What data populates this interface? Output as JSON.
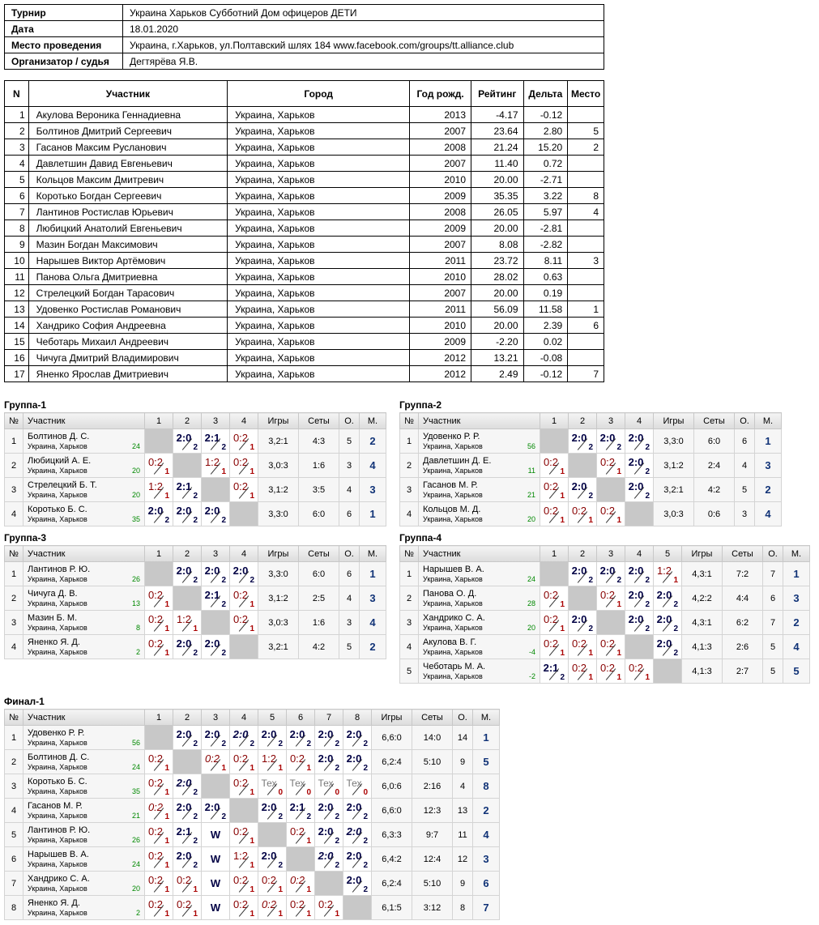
{
  "info": [
    {
      "k": "Турнир",
      "v": "Украина Харьков Субботний Дом офицеров ДЕТИ"
    },
    {
      "k": "Дата",
      "v": "18.01.2020"
    },
    {
      "k": "Место проведения",
      "v": "Украина, г.Харьков, ул.Полтавский шлях 184 www.facebook.com/groups/tt.alliance.club"
    },
    {
      "k": "Организатор / судья",
      "v": "Дегтярёва Я.В."
    }
  ],
  "parts_headers": [
    "N",
    "Участник",
    "Город",
    "Год рожд.",
    "Рейтинг",
    "Дельта",
    "Место"
  ],
  "parts": [
    [
      "1",
      "Акулова Вероника Геннадиевна",
      "Украина, Харьков",
      "2013",
      "-4.17",
      "-0.12",
      ""
    ],
    [
      "2",
      "Болтинов Дмитрий Сергеевич",
      "Украина, Харьков",
      "2007",
      "23.64",
      "2.80",
      "5"
    ],
    [
      "3",
      "Гасанов Максим Русланович",
      "Украина, Харьков",
      "2008",
      "21.24",
      "15.20",
      "2"
    ],
    [
      "4",
      "Давлетшин Давид Евгеньевич",
      "Украина, Харьков",
      "2007",
      "11.40",
      "0.72",
      ""
    ],
    [
      "5",
      "Кольцов Максим Дмитревич",
      "Украина, Харьков",
      "2010",
      "20.00",
      "-2.71",
      ""
    ],
    [
      "6",
      "Коротько Богдан Сергеевич",
      "Украина, Харьков",
      "2009",
      "35.35",
      "3.22",
      "8"
    ],
    [
      "7",
      "Лантинов Ростислав Юрьевич",
      "Украина, Харьков",
      "2008",
      "26.05",
      "5.97",
      "4"
    ],
    [
      "8",
      "Любицкий Анатолий Евгеньевич",
      "Украина, Харьков",
      "2009",
      "20.00",
      "-2.81",
      ""
    ],
    [
      "9",
      "Мазин Богдан Максимович",
      "Украина, Харьков",
      "2007",
      "8.08",
      "-2.82",
      ""
    ],
    [
      "10",
      "Нарышев Виктор Артёмович",
      "Украина, Харьков",
      "2011",
      "23.72",
      "8.11",
      "3"
    ],
    [
      "11",
      "Панова Ольга Дмитриевна",
      "Украина, Харьков",
      "2010",
      "28.02",
      "0.63",
      ""
    ],
    [
      "12",
      "Стрелецкий Богдан Тарасович",
      "Украина, Харьков",
      "2007",
      "20.00",
      "0.19",
      ""
    ],
    [
      "13",
      "Удовенко Ростислав Романович",
      "Украина, Харьков",
      "2011",
      "56.09",
      "11.58",
      "1"
    ],
    [
      "14",
      "Хандрико София Андреевна",
      "Украина, Харьков",
      "2010",
      "20.00",
      "2.39",
      "6"
    ],
    [
      "15",
      "Чеботарь Михаил Андреевич",
      "Украина, Харьков",
      "2009",
      "-2.20",
      "0.02",
      ""
    ],
    [
      "16",
      "Чичуга Дмитрий Владимирович",
      "Украина, Харьков",
      "2012",
      "13.21",
      "-0.08",
      ""
    ],
    [
      "17",
      "Яненко Ярослав Дмитриевич",
      "Украина, Харьков",
      "2012",
      "2.49",
      "-0.12",
      "7"
    ]
  ],
  "group_cols": {
    "num": "№",
    "player": "Участник",
    "games": "Игры",
    "sets": "Сеты",
    "points": "О.",
    "place": "М."
  },
  "groups": [
    {
      "title": "Группа-1",
      "rows": [
        {
          "n": "1",
          "name": "Болтинов Д. С.",
          "city": "Украина, Харьков",
          "rt": "24",
          "cells": [
            null,
            "w:2:0:2",
            "w:2:1:2",
            "l:0:2:1"
          ],
          "games": "3,2:1",
          "sets": "4:3",
          "pts": "5",
          "place": "2"
        },
        {
          "n": "2",
          "name": "Любицкий А. Е.",
          "city": "Украина, Харьков",
          "rt": "20",
          "cells": [
            "l:0:2:1",
            null,
            "l:1:2:1",
            "l:0:2:1"
          ],
          "games": "3,0:3",
          "sets": "1:6",
          "pts": "3",
          "place": "4"
        },
        {
          "n": "3",
          "name": "Стрелецкий Б. Т.",
          "city": "Украина, Харьков",
          "rt": "20",
          "cells": [
            "l:1:2:1",
            "w:2:1:2",
            null,
            "l:0:2:1"
          ],
          "games": "3,1:2",
          "sets": "3:5",
          "pts": "4",
          "place": "3"
        },
        {
          "n": "4",
          "name": "Коротько Б. С.",
          "city": "Украина, Харьков",
          "rt": "35",
          "cells": [
            "w:2:0:2",
            "w:2:0:2",
            "w:2:0:2",
            null
          ],
          "games": "3,3:0",
          "sets": "6:0",
          "pts": "6",
          "place": "1"
        }
      ]
    },
    {
      "title": "Группа-2",
      "rows": [
        {
          "n": "1",
          "name": "Удовенко Р. Р.",
          "city": "Украина, Харьков",
          "rt": "56",
          "cells": [
            null,
            "w:2:0:2",
            "w:2:0:2",
            "w:2:0:2"
          ],
          "games": "3,3:0",
          "sets": "6:0",
          "pts": "6",
          "place": "1"
        },
        {
          "n": "2",
          "name": "Давлетшин Д. Е.",
          "city": "Украина, Харьков",
          "rt": "11",
          "cells": [
            "l:0:2:1",
            null,
            "l:0:2:1",
            "w:2:0:2"
          ],
          "games": "3,1:2",
          "sets": "2:4",
          "pts": "4",
          "place": "3"
        },
        {
          "n": "3",
          "name": "Гасанов М. Р.",
          "city": "Украина, Харьков",
          "rt": "21",
          "cells": [
            "l:0:2:1",
            "w:2:0:2",
            null,
            "w:2:0:2"
          ],
          "games": "3,2:1",
          "sets": "4:2",
          "pts": "5",
          "place": "2"
        },
        {
          "n": "4",
          "name": "Кольцов М. Д.",
          "city": "Украина, Харьков",
          "rt": "20",
          "cells": [
            "l:0:2:1",
            "l:0:2:1",
            "l:0:2:1",
            null
          ],
          "games": "3,0:3",
          "sets": "0:6",
          "pts": "3",
          "place": "4"
        }
      ]
    },
    {
      "title": "Группа-3",
      "rows": [
        {
          "n": "1",
          "name": "Лантинов Р. Ю.",
          "city": "Украина, Харьков",
          "rt": "26",
          "cells": [
            null,
            "w:2:0:2",
            "w:2:0:2",
            "w:2:0:2"
          ],
          "games": "3,3:0",
          "sets": "6:0",
          "pts": "6",
          "place": "1"
        },
        {
          "n": "2",
          "name": "Чичуга Д. В.",
          "city": "Украина, Харьков",
          "rt": "13",
          "cells": [
            "l:0:2:1",
            null,
            "w:2:1:2",
            "l:0:2:1"
          ],
          "games": "3,1:2",
          "sets": "2:5",
          "pts": "4",
          "place": "3"
        },
        {
          "n": "3",
          "name": "Мазин Б. М.",
          "city": "Украина, Харьков",
          "rt": "8",
          "cells": [
            "l:0:2:1",
            "l:1:2:1",
            null,
            "l:0:2:1"
          ],
          "games": "3,0:3",
          "sets": "1:6",
          "pts": "3",
          "place": "4"
        },
        {
          "n": "4",
          "name": "Яненко Я. Д.",
          "city": "Украина, Харьков",
          "rt": "2",
          "cells": [
            "l:0:2:1",
            "w:2:0:2",
            "w:2:0:2",
            null
          ],
          "games": "3,2:1",
          "sets": "4:2",
          "pts": "5",
          "place": "2"
        }
      ]
    },
    {
      "title": "Группа-4",
      "rows": [
        {
          "n": "1",
          "name": "Нарышев В. А.",
          "city": "Украина, Харьков",
          "rt": "24",
          "cells": [
            null,
            "w:2:0:2",
            "w:2:0:2",
            "w:2:0:2",
            "l:1:2:1"
          ],
          "games": "4,3:1",
          "sets": "7:2",
          "pts": "7",
          "place": "1"
        },
        {
          "n": "2",
          "name": "Панова О. Д.",
          "city": "Украина, Харьков",
          "rt": "28",
          "cells": [
            "l:0:2:1",
            null,
            "l:0:2:1",
            "w:2:0:2",
            "w:2:0:2"
          ],
          "games": "4,2:2",
          "sets": "4:4",
          "pts": "6",
          "place": "3"
        },
        {
          "n": "3",
          "name": "Хандрико С. А.",
          "city": "Украина, Харьков",
          "rt": "20",
          "cells": [
            "l:0:2:1",
            "w:2:0:2",
            null,
            "w:2:0:2",
            "w:2:0:2"
          ],
          "games": "4,3:1",
          "sets": "6:2",
          "pts": "7",
          "place": "2"
        },
        {
          "n": "4",
          "name": "Акулова В. Г.",
          "city": "Украина, Харьков",
          "rt": "-4",
          "cells": [
            "l:0:2:1",
            "l:0:2:1",
            "l:0:2:1",
            null,
            "w:2:0:2"
          ],
          "games": "4,1:3",
          "sets": "2:6",
          "pts": "5",
          "place": "4"
        },
        {
          "n": "5",
          "name": "Чеботарь М. А.",
          "city": "Украина, Харьков",
          "rt": "-2",
          "cells": [
            "w:2:1:2",
            "l:0:2:1",
            "l:0:2:1",
            "l:0:2:1",
            null
          ],
          "games": "4,1:3",
          "sets": "2:7",
          "pts": "5",
          "place": "5"
        }
      ]
    },
    {
      "title": "Финал-1",
      "rows": [
        {
          "n": "1",
          "name": "Удовенко Р. Р.",
          "city": "Украина, Харьков",
          "rt": "56",
          "cells": [
            null,
            "w:2:0:2",
            "w:2:0:2",
            "wi:2:0:2",
            "w:2:0:2",
            "w:2:0:2",
            "w:2:0:2",
            "w:2:0:2"
          ],
          "games": "6,6:0",
          "sets": "14:0",
          "pts": "14",
          "place": "1"
        },
        {
          "n": "2",
          "name": "Болтинов Д. С.",
          "city": "Украина, Харьков",
          "rt": "24",
          "cells": [
            "l:0:2:1",
            null,
            "li:0:2:1",
            "l:0:2:1",
            "l:1:2:1",
            "l:0:2:1",
            "w:2:0:2",
            "w:2:0:2"
          ],
          "games": "6,2:4",
          "sets": "5:10",
          "pts": "9",
          "place": "5"
        },
        {
          "n": "3",
          "name": "Коротько Б. С.",
          "city": "Украина, Харьков",
          "rt": "35",
          "cells": [
            "l:0:2:1",
            "wi:2:0:2",
            null,
            "l:0:2:1",
            "t:Тех:0",
            "t:Тех:0",
            "t:Тех:0",
            "t:Тех:0"
          ],
          "games": "6,0:6",
          "sets": "2:16",
          "pts": "4",
          "place": "8"
        },
        {
          "n": "4",
          "name": "Гасанов М. Р.",
          "city": "Украина, Харьков",
          "rt": "21",
          "cells": [
            "li:0:2:1",
            "w:2:0:2",
            "w:2:0:2",
            null,
            "w:2:0:2",
            "w:2:1:2",
            "w:2:0:2",
            "w:2:0:2"
          ],
          "games": "6,6:0",
          "sets": "12:3",
          "pts": "13",
          "place": "2"
        },
        {
          "n": "5",
          "name": "Лантинов Р. Ю.",
          "city": "Украина, Харьков",
          "rt": "26",
          "cells": [
            "l:0:2:1",
            "w:2:1:2",
            "W",
            "l:0:2:1",
            null,
            "l:0:2:1",
            "w:2:0:2",
            "wi:2:0:2"
          ],
          "games": "6,3:3",
          "sets": "9:7",
          "pts": "11",
          "place": "4"
        },
        {
          "n": "6",
          "name": "Нарышев В. А.",
          "city": "Украина, Харьков",
          "rt": "24",
          "cells": [
            "l:0:2:1",
            "w:2:0:2",
            "W",
            "l:1:2:1",
            "w:2:0:2",
            null,
            "wi:2:0:2",
            "w:2:0:2"
          ],
          "games": "6,4:2",
          "sets": "12:4",
          "pts": "12",
          "place": "3"
        },
        {
          "n": "7",
          "name": "Хандрико С. А.",
          "city": "Украина, Харьков",
          "rt": "20",
          "cells": [
            "l:0:2:1",
            "l:0:2:1",
            "W",
            "l:0:2:1",
            "l:0:2:1",
            "li:0:2:1",
            null,
            "w:2:0:2"
          ],
          "games": "6,2:4",
          "sets": "5:10",
          "pts": "9",
          "place": "6"
        },
        {
          "n": "8",
          "name": "Яненко Я. Д.",
          "city": "Украина, Харьков",
          "rt": "2",
          "cells": [
            "l:0:2:1",
            "l:0:2:1",
            "W",
            "l:0:2:1",
            "li:0:2:1",
            "l:0:2:1",
            "l:0:2:1",
            null
          ],
          "games": "6,1:5",
          "sets": "3:12",
          "pts": "8",
          "place": "7"
        }
      ]
    }
  ]
}
